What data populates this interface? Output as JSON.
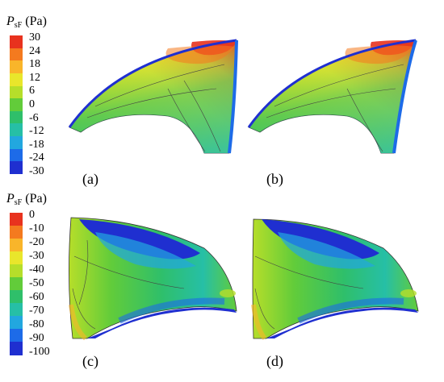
{
  "legend_top": {
    "symbol": "P",
    "subscript": "sF",
    "unit": "(Pa)",
    "ticks": [
      "30",
      "24",
      "18",
      "12",
      "6",
      "0",
      "-6",
      "-12",
      "-18",
      "-24",
      "-30"
    ],
    "colors": [
      "#e8321e",
      "#f47a1f",
      "#f9b52a",
      "#e9e62b",
      "#b6de2a",
      "#62cc3a",
      "#2fbf6a",
      "#26bfa6",
      "#22a7df",
      "#1d6be8",
      "#1f2fd0"
    ]
  },
  "legend_bottom": {
    "symbol": "P",
    "subscript": "sF",
    "unit": "(Pa)",
    "ticks": [
      "0",
      "-10",
      "-20",
      "-30",
      "-40",
      "-50",
      "-60",
      "-70",
      "-80",
      "-90",
      "-100"
    ],
    "colors": [
      "#e8321e",
      "#f47a1f",
      "#f9b52a",
      "#e9e62b",
      "#b6de2a",
      "#62cc3a",
      "#2fbf6a",
      "#26bfa6",
      "#22a7df",
      "#1d6be8",
      "#1f2fd0"
    ]
  },
  "panels": {
    "a": {
      "label": "(a)"
    },
    "b": {
      "label": "(b)"
    },
    "c": {
      "label": "(c)"
    },
    "d": {
      "label": "(d)"
    }
  }
}
